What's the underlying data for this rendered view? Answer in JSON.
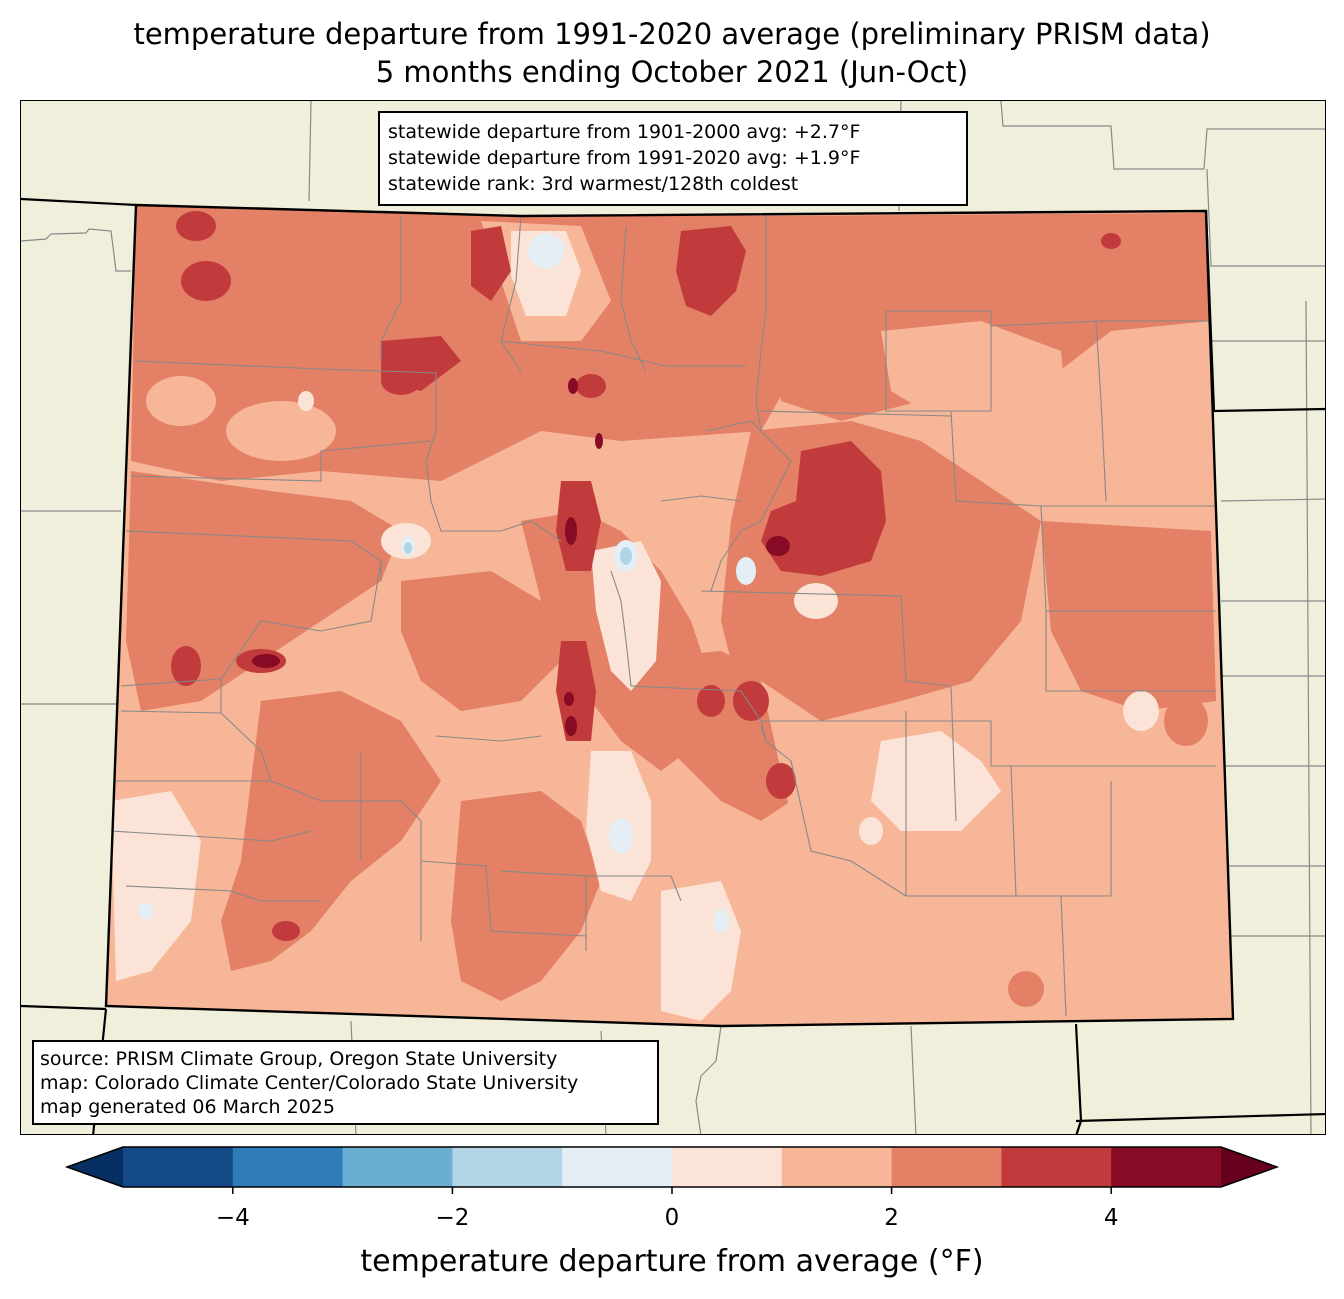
{
  "title": {
    "line1": "temperature departure from 1991-2020 average (preliminary PRISM data)",
    "line2": "5 months ending October 2021 (Jun-Oct)"
  },
  "stats": {
    "line1": "statewide departure from 1901-2000 avg: +2.7°F",
    "line2": "statewide departure from 1991-2020 avg: +1.9°F",
    "line3": "statewide rank: 3rd warmest/128th coldest"
  },
  "source": {
    "line1": "source: PRISM Climate Group, Oregon State University",
    "line2": "map: Colorado Climate Center/Colorado State University",
    "line3": "map generated 06 March 2025"
  },
  "colorbar": {
    "label": "temperature departure from average (°F)",
    "min": -5,
    "max": 5,
    "step": 1,
    "colors": [
      "#134a87",
      "#2f7cb9",
      "#6aaed2",
      "#b1d5e7",
      "#e5eef4",
      "#fbe4d7",
      "#f7b698",
      "#e38066",
      "#c13b3c",
      "#870b25"
    ],
    "under_color": "#053061",
    "over_color": "#67001f",
    "ticks": [
      {
        "value": -4,
        "label": "−4"
      },
      {
        "value": -2,
        "label": "−2"
      },
      {
        "value": 0,
        "label": "0"
      },
      {
        "value": 2,
        "label": "2"
      },
      {
        "value": 4,
        "label": "4"
      }
    ]
  },
  "map_colors": {
    "background": "#f0efdc",
    "state_fill": "#f7b698"
  }
}
